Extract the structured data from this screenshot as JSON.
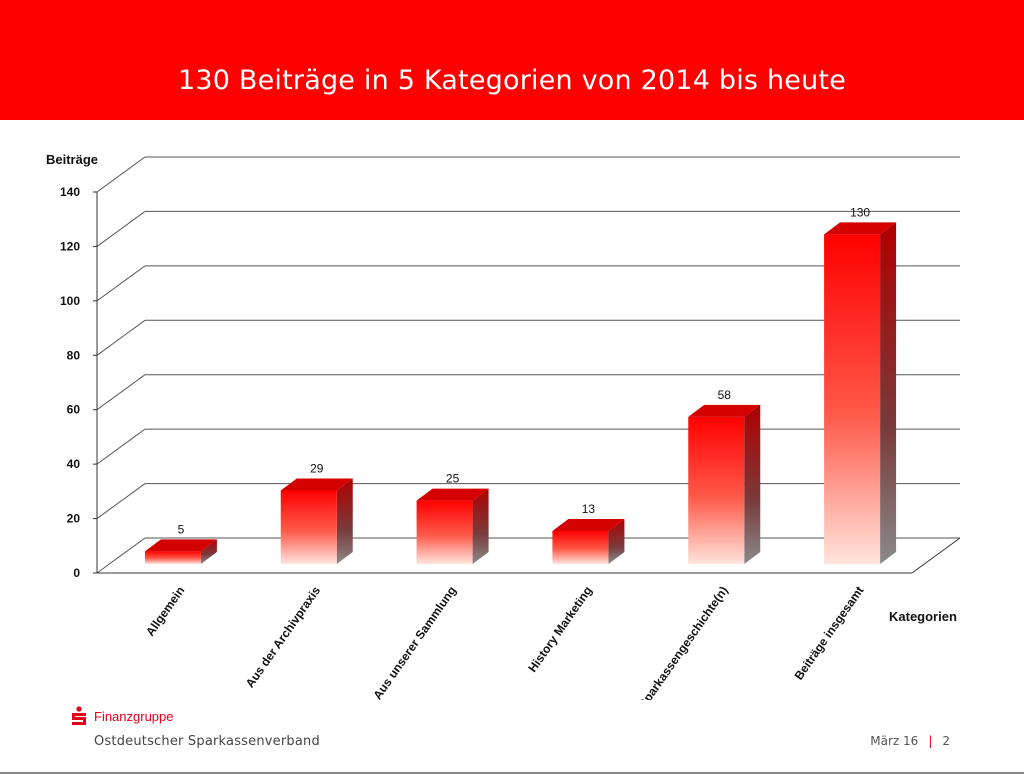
{
  "header": {
    "title": "130 Beiträge in 5 Kategorien von 2014 bis heute"
  },
  "chart_data": {
    "type": "bar",
    "title": "130 Beiträge in 5 Kategorien von 2014 bis heute",
    "ylabel": "Beiträge",
    "xlabel": "Kategorien",
    "ylim": [
      0,
      140
    ],
    "yticks": [
      0,
      20,
      40,
      60,
      80,
      100,
      120,
      140
    ],
    "categories": [
      "Allgemein",
      "Aus der Archivpraxis",
      "Aus unserer Sammlung",
      "History Marketing",
      "Sparkassengeschichte(n)",
      "Beiträge insgesamt"
    ],
    "values": [
      5,
      29,
      25,
      13,
      58,
      130
    ],
    "grid": true,
    "style": "3d-bar",
    "colors": {
      "bar_top": "#ff0000",
      "bar_bottom": "#ffe0d8",
      "bar_side": "#b00000",
      "bar_cap": "#d40000"
    }
  },
  "footer": {
    "brand": "Finanzgruppe",
    "org": "Ostdeutscher  Sparkassenverband",
    "date": "März 16",
    "separator": "|",
    "page": "2",
    "logo_icon": "sparkasse-s-logo"
  }
}
